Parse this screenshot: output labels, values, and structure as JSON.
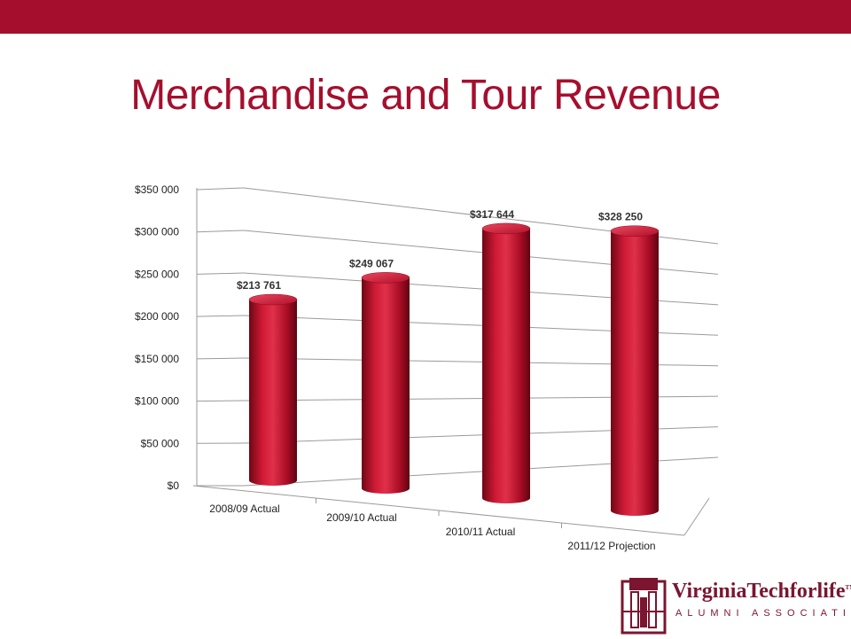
{
  "slide": {
    "title": "Merchandise and Tour Revenue",
    "accent_color": "#a50f2d"
  },
  "logo": {
    "name": "VirginiaTechforlife",
    "tm": "TM",
    "subtitle": "ALUMNI ASSOCIATION",
    "icon": "hokie-tower-logo-icon"
  },
  "chart_data": {
    "type": "bar",
    "style": "3d-cylinder",
    "title": "",
    "xlabel": "",
    "ylabel": "",
    "categories": [
      "2008/09 Actual",
      "2009/10 Actual",
      "2010/11 Actual",
      "2011/12 Projection"
    ],
    "values": [
      213761,
      249067,
      317644,
      328250
    ],
    "data_labels": [
      "$213 761",
      "$249 067",
      "$317 644",
      "$328 250"
    ],
    "ylim": [
      0,
      350000
    ],
    "yticks": [
      0,
      50000,
      100000,
      150000,
      200000,
      250000,
      300000,
      350000
    ],
    "ytick_labels": [
      "$0",
      "$50 000",
      "$100 000",
      "$150 000",
      "$200 000",
      "$250 000",
      "$300 000",
      "$350 000"
    ],
    "grid": true,
    "legend": "none",
    "bar_color": "#c8102e"
  }
}
